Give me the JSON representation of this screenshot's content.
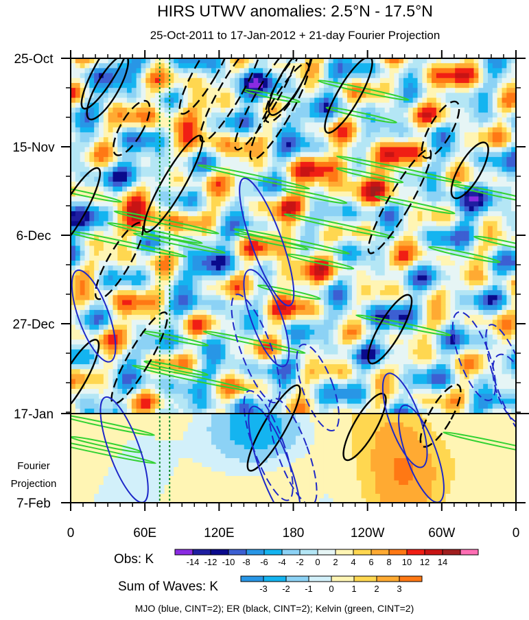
{
  "chart_data": {
    "type": "heatmap",
    "title": "HIRS UTWV anomalies: 2.5°N - 17.5°N",
    "subtitle": "25-Oct-2011 to 17-Jan-2012 + 21-day Fourier Projection",
    "x_ticks": [
      "0",
      "60E",
      "120E",
      "180",
      "120W",
      "60W",
      "0"
    ],
    "x_range_deg_east": [
      0,
      360
    ],
    "y_ticks": [
      "25-Oct",
      "15-Nov",
      "6-Dec",
      "27-Dec",
      "17-Jan",
      "7-Feb"
    ],
    "projection_label_line1": "Fourier",
    "projection_label_line2": "Projection",
    "reference_lines_deg_east": [
      72,
      80
    ],
    "obs_colorbar": {
      "label": "Obs: K",
      "levels": [
        "-14",
        "-12",
        "-10",
        "-8",
        "-6",
        "-4",
        "-2",
        "0",
        "2",
        "4",
        "6",
        "8",
        "10",
        "12",
        "14"
      ],
      "colors": [
        "#8a2be2",
        "#1e1ea0",
        "#0a0a8c",
        "#3c5fd2",
        "#2896e6",
        "#14b4f0",
        "#8cd2f5",
        "#b4e6f5",
        "#e6f5f5",
        "#fff5b4",
        "#ffd750",
        "#ffaa32",
        "#ff7814",
        "#f01e14",
        "#c81414",
        "#a01e1e",
        "#ff6eb4"
      ]
    },
    "waves_colorbar": {
      "label": "Sum of Waves: K",
      "levels": [
        "-3",
        "-2",
        "-1",
        "0",
        "1",
        "2",
        "3"
      ],
      "colors": [
        "#2896e6",
        "#14b4f0",
        "#8cd2f5",
        "#d2f0fa",
        "#fff5b4",
        "#ffd750",
        "#ffaa32",
        "#ff7814"
      ]
    },
    "legend_note": "MJO (blue, CINT=2); ER (black, CINT=2); Kelvin (green, CINT=2)",
    "contour_colors": {
      "mjo": "#1e28c8",
      "er": "#000000",
      "kelvin": "#32d232"
    }
  }
}
